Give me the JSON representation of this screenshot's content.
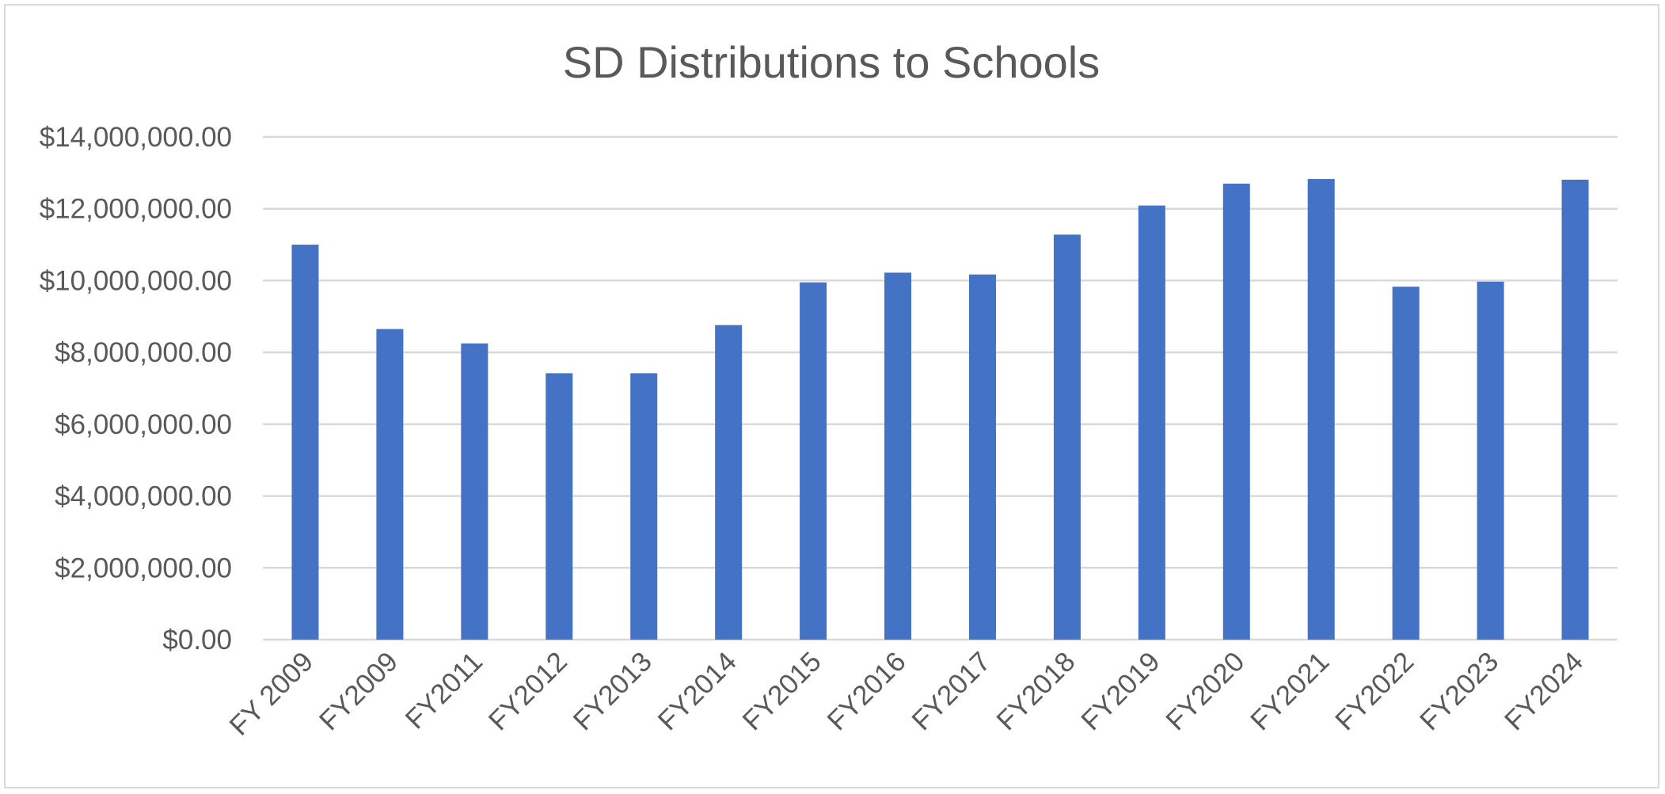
{
  "chart_data": {
    "type": "bar",
    "title": "SD Distributions to Schools",
    "xlabel": "",
    "ylabel": "",
    "categories": [
      "FY 2009",
      "FY2009",
      "FY2011",
      "FY2012",
      "FY2013",
      "FY2014",
      "FY2015",
      "FY2016",
      "FY2017",
      "FY2018",
      "FY2019",
      "FY2020",
      "FY2021",
      "FY2022",
      "FY2023",
      "FY2024"
    ],
    "values": [
      11000000,
      8650000,
      8250000,
      7420000,
      7420000,
      8760000,
      9950000,
      10220000,
      10170000,
      11280000,
      12090000,
      12700000,
      12830000,
      9830000,
      9970000,
      12810000
    ],
    "ylim": [
      0,
      14000000
    ],
    "yticks": [
      0,
      2000000,
      4000000,
      6000000,
      8000000,
      10000000,
      12000000,
      14000000
    ],
    "ytick_labels": [
      "$0.00",
      "$2,000,000.00",
      "$4,000,000.00",
      "$6,000,000.00",
      "$8,000,000.00",
      "$10,000,000.00",
      "$12,000,000.00",
      "$14,000,000.00"
    ],
    "bar_color": "#4472c4",
    "grid": true,
    "legend": "none"
  }
}
